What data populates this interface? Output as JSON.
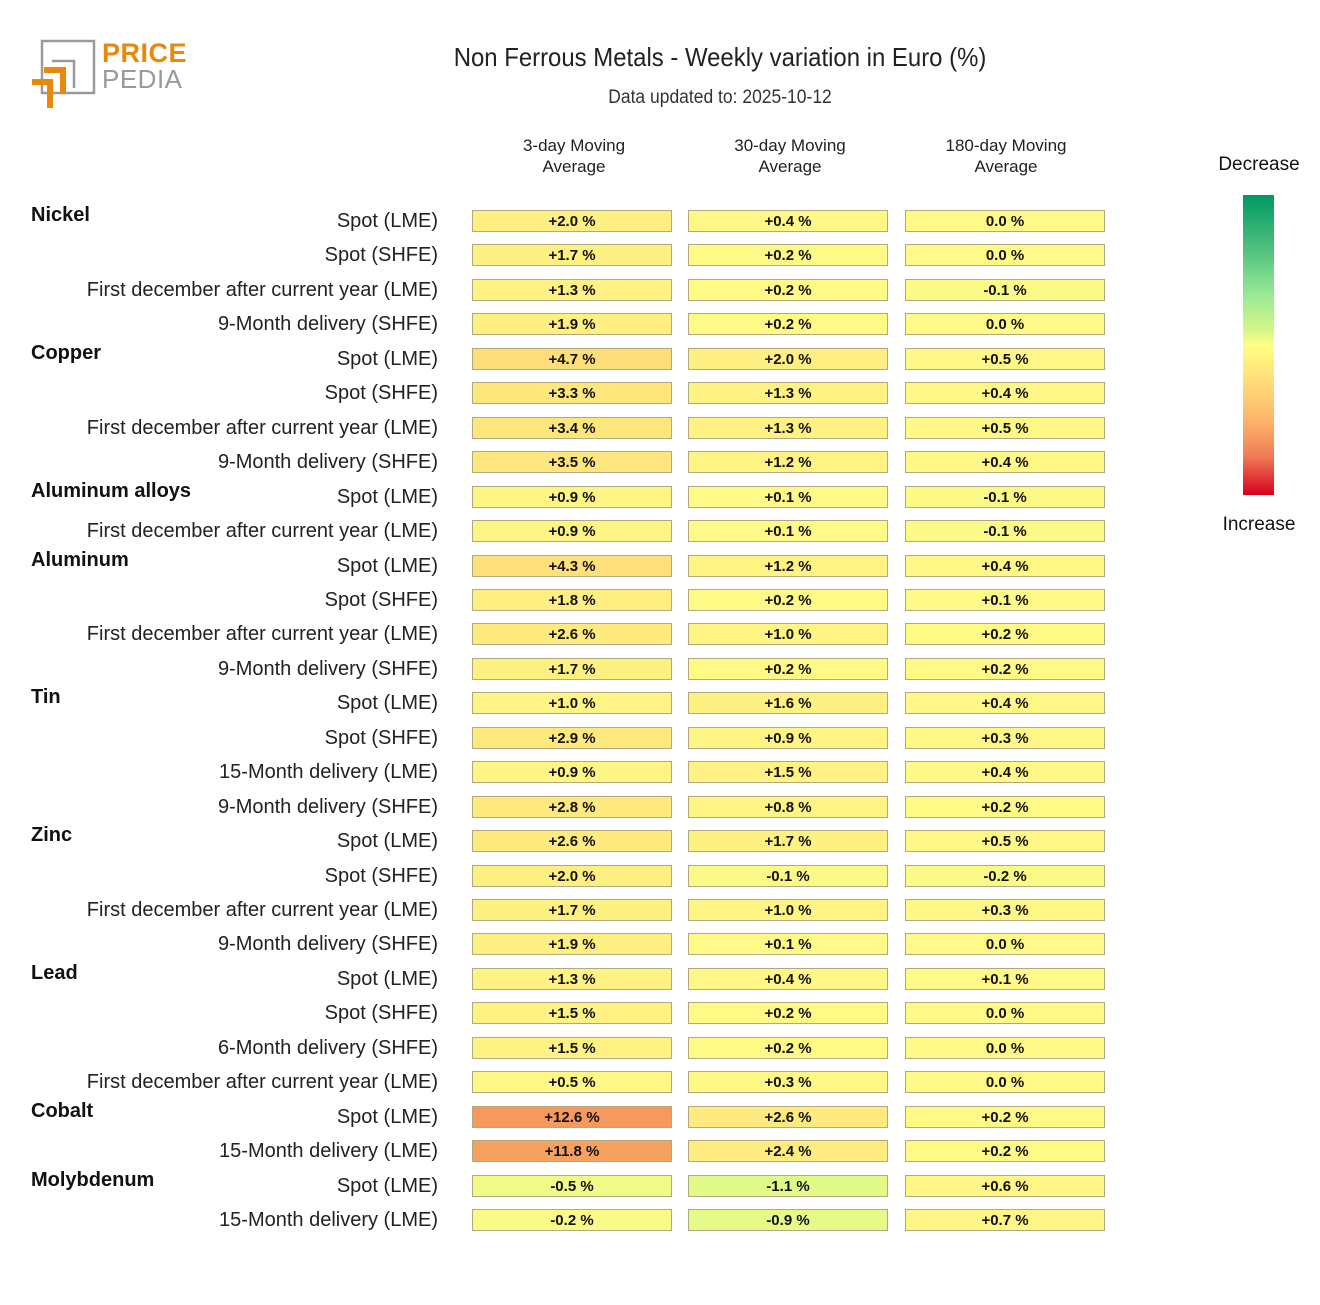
{
  "logo": {
    "word1": "PRICE",
    "word2": "PEDIA"
  },
  "colors": {
    "brand_orange": "#e8890c",
    "brand_gray": "#9a9a9a"
  },
  "chart_data": {
    "type": "heatmap",
    "title": "Non Ferrous Metals - Weekly variation in Euro (%)",
    "subtitle": "Data updated to: 2025-10-12",
    "columns": [
      "3-day Moving Average",
      "30-day Moving Average",
      "180-day Moving Average"
    ],
    "column_lines": [
      [
        "3-day Moving",
        "Average"
      ],
      [
        "30-day Moving",
        "Average"
      ],
      [
        "180-day Moving",
        "Average"
      ]
    ],
    "legend": {
      "top": "Decrease",
      "bottom": "Increase",
      "colors_top_to_bottom": [
        "#009a63",
        "#98e896",
        "#ffff84",
        "#fdb56c",
        "#d7001f"
      ]
    },
    "unit": "%",
    "groups": [
      {
        "name": "Nickel",
        "rows": [
          {
            "label": "Spot (LME)",
            "values": [
              2.0,
              0.4,
              0.0
            ]
          },
          {
            "label": "Spot (SHFE)",
            "values": [
              1.7,
              0.2,
              0.0
            ]
          },
          {
            "label": "First december after current year (LME)",
            "values": [
              1.3,
              0.2,
              -0.1
            ]
          },
          {
            "label": "9-Month delivery (SHFE)",
            "values": [
              1.9,
              0.2,
              0.0
            ]
          }
        ]
      },
      {
        "name": "Copper",
        "rows": [
          {
            "label": "Spot (LME)",
            "values": [
              4.7,
              2.0,
              0.5
            ]
          },
          {
            "label": "Spot (SHFE)",
            "values": [
              3.3,
              1.3,
              0.4
            ]
          },
          {
            "label": "First december after current year (LME)",
            "values": [
              3.4,
              1.3,
              0.5
            ]
          },
          {
            "label": "9-Month delivery (SHFE)",
            "values": [
              3.5,
              1.2,
              0.4
            ]
          }
        ]
      },
      {
        "name": "Aluminum alloys",
        "rows": [
          {
            "label": "Spot (LME)",
            "values": [
              0.9,
              0.1,
              -0.1
            ]
          },
          {
            "label": "First december after current year (LME)",
            "values": [
              0.9,
              0.1,
              -0.1
            ]
          }
        ]
      },
      {
        "name": "Aluminum",
        "rows": [
          {
            "label": "Spot (LME)",
            "values": [
              4.3,
              1.2,
              0.4
            ]
          },
          {
            "label": "Spot (SHFE)",
            "values": [
              1.8,
              0.2,
              0.1
            ]
          },
          {
            "label": "First december after current year (LME)",
            "values": [
              2.6,
              1.0,
              0.2
            ]
          },
          {
            "label": "9-Month delivery (SHFE)",
            "values": [
              1.7,
              0.2,
              0.2
            ]
          }
        ]
      },
      {
        "name": "Tin",
        "rows": [
          {
            "label": "Spot (LME)",
            "values": [
              1.0,
              1.6,
              0.4
            ]
          },
          {
            "label": "Spot (SHFE)",
            "values": [
              2.9,
              0.9,
              0.3
            ]
          },
          {
            "label": "15-Month delivery (LME)",
            "values": [
              0.9,
              1.5,
              0.4
            ]
          },
          {
            "label": "9-Month delivery (SHFE)",
            "values": [
              2.8,
              0.8,
              0.2
            ]
          }
        ]
      },
      {
        "name": "Zinc",
        "rows": [
          {
            "label": "Spot (LME)",
            "values": [
              2.6,
              1.7,
              0.5
            ]
          },
          {
            "label": "Spot (SHFE)",
            "values": [
              2.0,
              -0.1,
              -0.2
            ]
          },
          {
            "label": "First december after current year (LME)",
            "values": [
              1.7,
              1.0,
              0.3
            ]
          },
          {
            "label": "9-Month delivery (SHFE)",
            "values": [
              1.9,
              0.1,
              0.0
            ]
          }
        ]
      },
      {
        "name": "Lead",
        "rows": [
          {
            "label": "Spot (LME)",
            "values": [
              1.3,
              0.4,
              0.1
            ]
          },
          {
            "label": "Spot (SHFE)",
            "values": [
              1.5,
              0.2,
              0.0
            ]
          },
          {
            "label": "6-Month delivery (SHFE)",
            "values": [
              1.5,
              0.2,
              0.0
            ]
          },
          {
            "label": "First december after current year (LME)",
            "values": [
              0.5,
              0.3,
              0.0
            ]
          }
        ]
      },
      {
        "name": "Cobalt",
        "rows": [
          {
            "label": "Spot (LME)",
            "values": [
              12.6,
              2.6,
              0.2
            ]
          },
          {
            "label": "15-Month delivery (LME)",
            "values": [
              11.8,
              2.4,
              0.2
            ]
          }
        ]
      },
      {
        "name": "Molybdenum",
        "rows": [
          {
            "label": "Spot (LME)",
            "values": [
              -0.5,
              -1.1,
              0.6
            ]
          },
          {
            "label": "15-Month delivery (LME)",
            "values": [
              -0.2,
              -0.9,
              0.7
            ]
          }
        ]
      }
    ]
  }
}
